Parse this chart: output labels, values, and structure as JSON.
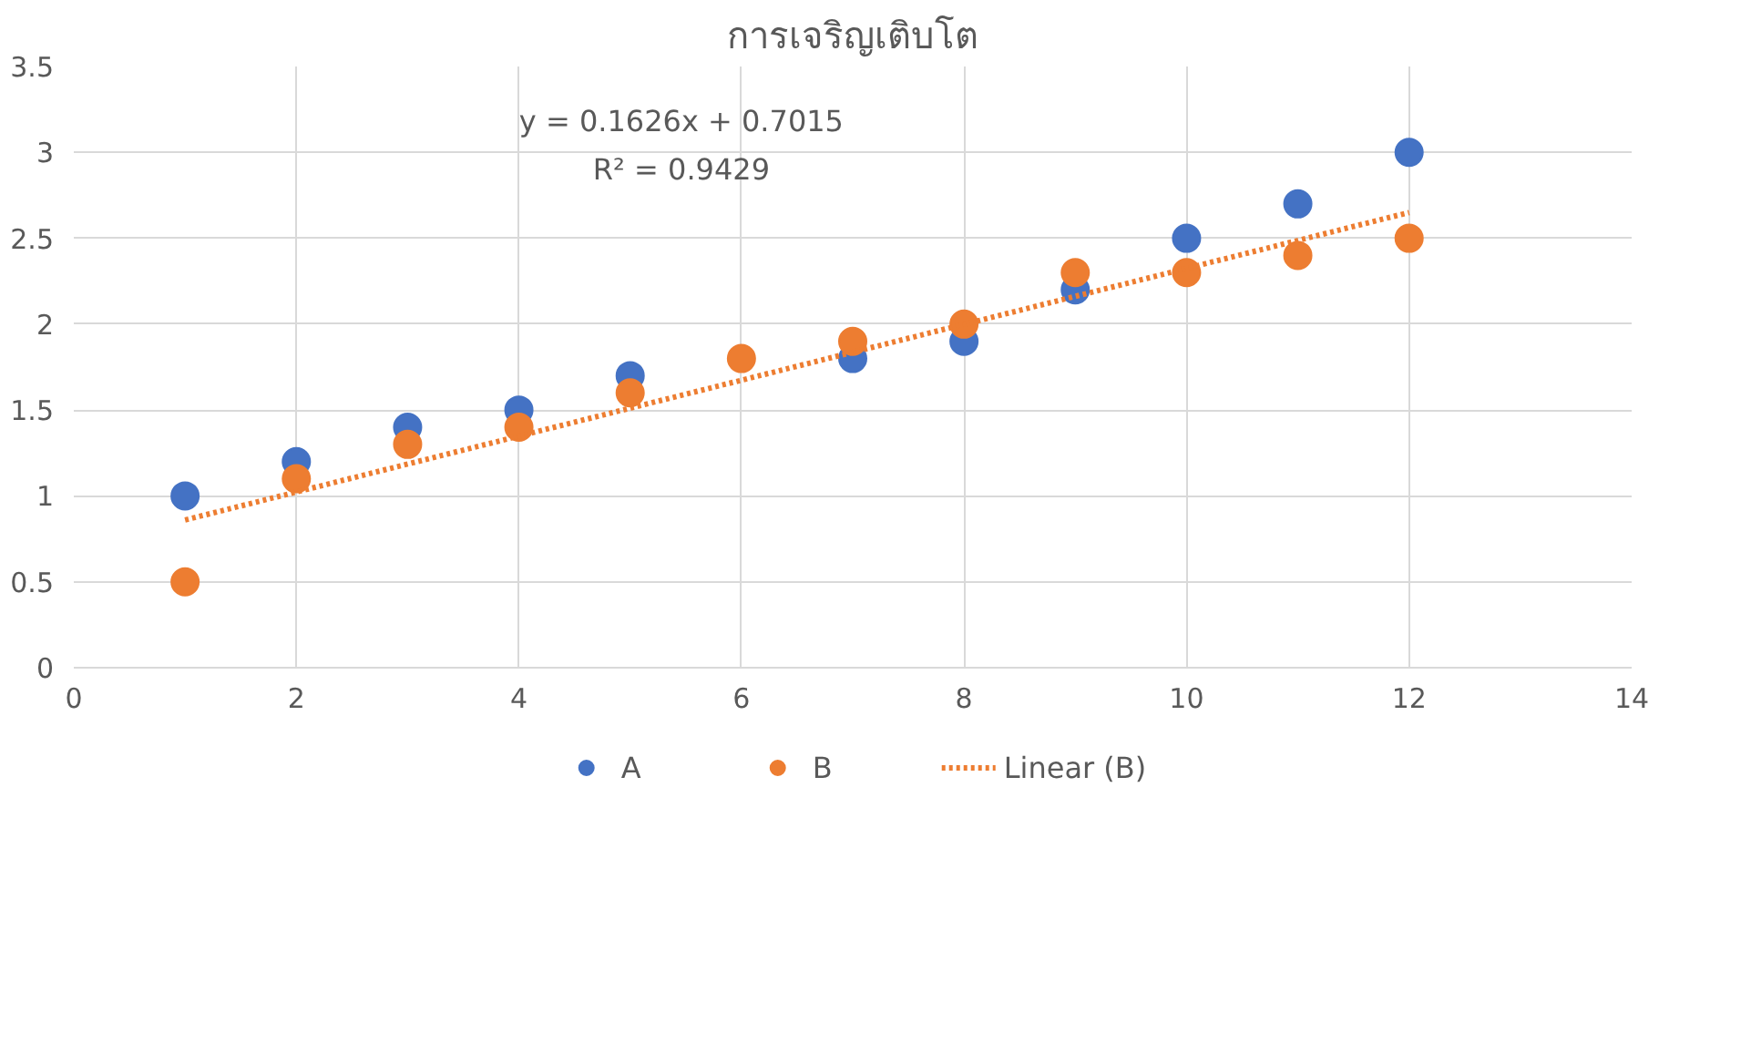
{
  "chart_data": {
    "type": "scatter",
    "title": "การเจริญเติบโต",
    "x": [
      1,
      2,
      3,
      4,
      5,
      6,
      7,
      8,
      9,
      10,
      11,
      12
    ],
    "series": [
      {
        "name": "A",
        "color": "#4472c4",
        "marker": "circle",
        "values": [
          1.0,
          1.2,
          1.4,
          1.5,
          1.7,
          null,
          1.8,
          1.9,
          2.2,
          2.5,
          2.7,
          3.0
        ]
      },
      {
        "name": "B",
        "color": "#ed7d31",
        "marker": "circle",
        "values": [
          0.5,
          1.1,
          1.3,
          1.4,
          1.6,
          1.8,
          1.9,
          2.0,
          2.3,
          2.3,
          2.4,
          2.5
        ]
      },
      {
        "name": "Linear (B)",
        "type": "line",
        "line_style": "dotted",
        "color": "#ed7d31",
        "x": [
          1,
          12
        ],
        "values": [
          0.86,
          2.65
        ]
      }
    ],
    "xlim": [
      0,
      14
    ],
    "xticks": [
      0,
      2,
      4,
      6,
      8,
      10,
      12,
      14
    ],
    "ylim": [
      0,
      3.5
    ],
    "yticks": [
      0,
      0.5,
      1,
      1.5,
      2,
      2.5,
      3,
      3.5
    ],
    "grid": true,
    "legend": "bottom",
    "annotations": [
      "y = 0.1626x + 0.7015",
      "R² = 0.9429"
    ]
  }
}
